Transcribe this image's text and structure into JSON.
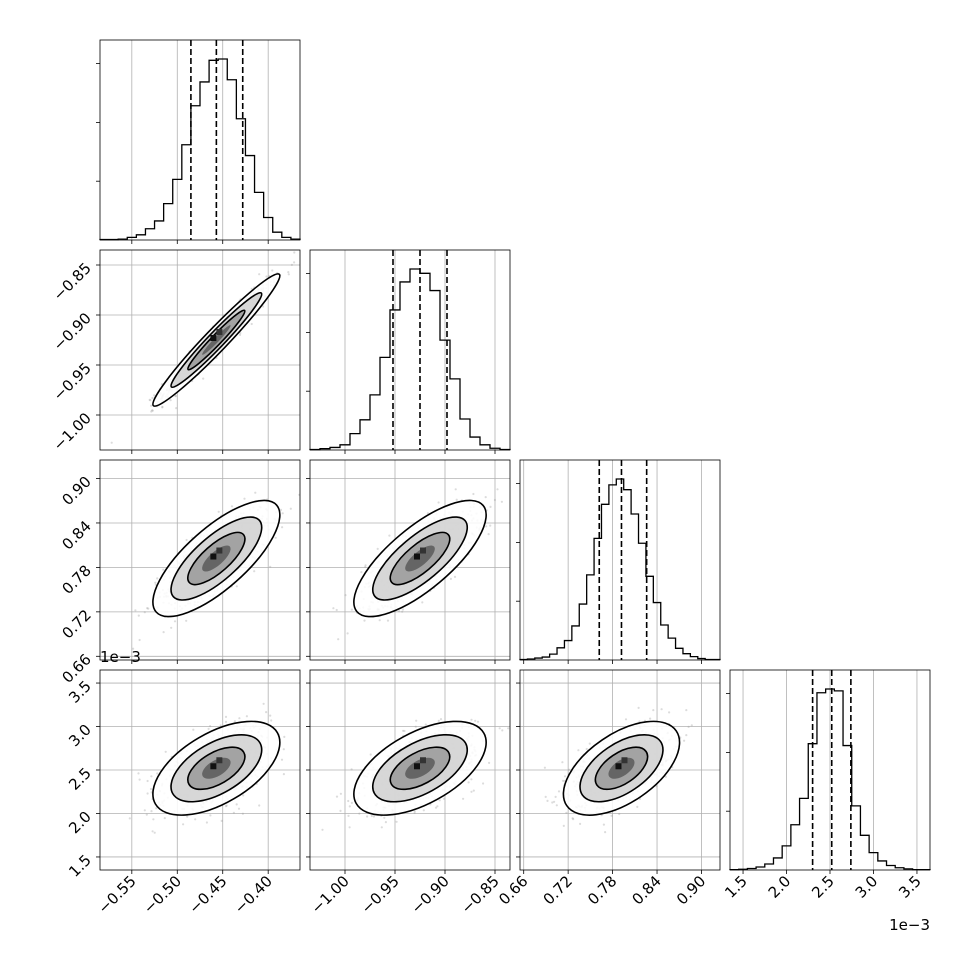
{
  "chart_data": {
    "type": "corner",
    "grid": true,
    "parameters": [
      {
        "index": 0,
        "range": [
          -0.585,
          -0.365
        ],
        "ticks": [
          -0.55,
          -0.5,
          -0.45,
          -0.4
        ],
        "tick_labels": [
          "−0.55",
          "−0.50",
          "−0.45",
          "−0.40"
        ],
        "offset_label": "",
        "quantiles": [
          -0.485,
          -0.457,
          -0.428
        ]
      },
      {
        "index": 1,
        "range": [
          -1.035,
          -0.835
        ],
        "ticks": [
          -1.0,
          -0.95,
          -0.9,
          -0.85
        ],
        "tick_labels": [
          "−1.00",
          "−0.95",
          "−0.90",
          "−0.85"
        ],
        "offset_label": "",
        "quantiles": [
          -0.952,
          -0.925,
          -0.898
        ]
      },
      {
        "index": 2,
        "range": [
          0.655,
          0.925
        ],
        "ticks": [
          0.66,
          0.72,
          0.78,
          0.84,
          0.9
        ],
        "tick_labels": [
          "0.66",
          "0.72",
          "0.78",
          "0.84",
          "0.90"
        ],
        "offset_label": "",
        "quantiles": [
          0.762,
          0.792,
          0.826
        ]
      },
      {
        "index": 3,
        "range": [
          1.35,
          3.65
        ],
        "ticks": [
          1.5,
          2.0,
          2.5,
          3.0,
          3.5
        ],
        "tick_labels": [
          "1.5",
          "2.0",
          "2.5",
          "3.0",
          "3.5"
        ],
        "offset_label": "1e−3",
        "quantiles": [
          2.3,
          2.52,
          2.74
        ]
      }
    ],
    "histograms": [
      {
        "param": 0,
        "bin_edges": [
          -0.585,
          -0.575,
          -0.565,
          -0.555,
          -0.545,
          -0.535,
          -0.525,
          -0.515,
          -0.505,
          -0.495,
          -0.485,
          -0.475,
          -0.465,
          -0.455,
          -0.445,
          -0.435,
          -0.425,
          -0.415,
          -0.405,
          -0.395,
          -0.385,
          -0.375,
          -0.365
        ],
        "counts": [
          1,
          1,
          2,
          6,
          12,
          26,
          44,
          84,
          140,
          220,
          310,
          365,
          415,
          418,
          370,
          280,
          195,
          110,
          52,
          18,
          6,
          2
        ]
      },
      {
        "param": 1,
        "bin_edges": [
          -1.035,
          -1.025,
          -1.015,
          -1.005,
          -0.995,
          -0.985,
          -0.975,
          -0.965,
          -0.955,
          -0.945,
          -0.935,
          -0.925,
          -0.915,
          -0.905,
          -0.895,
          -0.885,
          -0.875,
          -0.865,
          -0.855,
          -0.845,
          -0.835
        ],
        "counts": [
          1,
          3,
          6,
          12,
          38,
          70,
          128,
          215,
          325,
          390,
          420,
          410,
          370,
          255,
          165,
          72,
          30,
          12,
          4,
          1
        ]
      },
      {
        "param": 2,
        "bin_edges": [
          0.655,
          0.665,
          0.675,
          0.685,
          0.695,
          0.705,
          0.715,
          0.725,
          0.735,
          0.745,
          0.755,
          0.765,
          0.775,
          0.785,
          0.795,
          0.805,
          0.815,
          0.825,
          0.835,
          0.845,
          0.855,
          0.865,
          0.875,
          0.885,
          0.895,
          0.905,
          0.915,
          0.925
        ],
        "counts": [
          1,
          2,
          4,
          6,
          12,
          25,
          40,
          70,
          115,
          175,
          250,
          320,
          360,
          372,
          350,
          300,
          240,
          172,
          118,
          72,
          45,
          24,
          13,
          7,
          3,
          1,
          1
        ]
      },
      {
        "param": 3,
        "bin_edges": [
          1.35,
          1.45,
          1.55,
          1.65,
          1.75,
          1.85,
          1.95,
          2.05,
          2.15,
          2.25,
          2.35,
          2.45,
          2.55,
          2.65,
          2.75,
          2.85,
          2.95,
          3.05,
          3.15,
          3.25,
          3.35,
          3.45,
          3.55,
          3.65
        ],
        "counts": [
          1,
          2,
          4,
          8,
          16,
          32,
          64,
          120,
          190,
          335,
          470,
          480,
          475,
          330,
          170,
          92,
          46,
          24,
          12,
          6,
          3,
          1,
          1
        ]
      }
    ],
    "pairs": [
      {
        "x_param": 0,
        "y_param": 1,
        "correlation": 0.97
      },
      {
        "x_param": 0,
        "y_param": 2,
        "correlation": 0.75
      },
      {
        "x_param": 1,
        "y_param": 2,
        "correlation": 0.75
      },
      {
        "x_param": 0,
        "y_param": 3,
        "correlation": 0.55
      },
      {
        "x_param": 1,
        "y_param": 3,
        "correlation": 0.55
      },
      {
        "x_param": 2,
        "y_param": 3,
        "correlation": 0.55
      }
    ]
  }
}
